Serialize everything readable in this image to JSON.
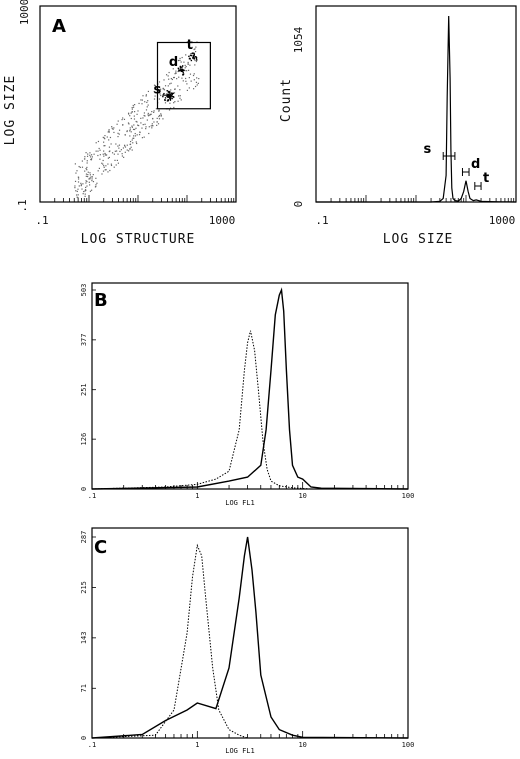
{
  "chart_data": [
    {
      "id": "A-scatter",
      "type": "scatter",
      "panel_label": "A",
      "xlabel": "LOG STRUCTURE",
      "ylabel": "LOG SIZE",
      "x_scale": "log",
      "y_scale": "log",
      "xlim": [
        0.1,
        1000
      ],
      "ylim": [
        0.1,
        1000
      ],
      "x_ticks": [
        ".1",
        "1000"
      ],
      "y_ticks": [
        ".1",
        "1000"
      ],
      "gate_box": {
        "x": [
          25,
          300
        ],
        "y": [
          8,
          180
        ]
      },
      "populations": [
        {
          "label": "s",
          "x": 40,
          "y": 15
        },
        {
          "label": "d",
          "x": 75,
          "y": 50
        },
        {
          "label": "t",
          "x": 130,
          "y": 90
        }
      ]
    },
    {
      "id": "A-histogram",
      "type": "line",
      "ylabel": "Count",
      "xlabel": "LOG  SIZE",
      "x_scale": "log",
      "xlim": [
        0.1,
        1000
      ],
      "ylim": [
        0,
        1054
      ],
      "x_ticks": [
        ".1",
        "1000"
      ],
      "y_ticks": [
        "0",
        "1054"
      ],
      "x": [
        20,
        30,
        35,
        40,
        42,
        45,
        48,
        50,
        52,
        55,
        60,
        70,
        80,
        90,
        100,
        110,
        120,
        140,
        160,
        200,
        300,
        500,
        1000
      ],
      "values": [
        0,
        4,
        20,
        150,
        600,
        1054,
        700,
        300,
        80,
        20,
        8,
        5,
        20,
        60,
        120,
        60,
        20,
        8,
        12,
        4,
        2,
        1,
        0
      ],
      "gates": [
        {
          "label": "s",
          "x": [
            35,
            60
          ]
        },
        {
          "label": "d",
          "x": [
            85,
            115
          ]
        },
        {
          "label": "t",
          "x": [
            150,
            200
          ]
        }
      ]
    },
    {
      "id": "B",
      "type": "line",
      "panel_label": "B",
      "xlabel": "LOG FL1",
      "x_scale": "log",
      "xlim": [
        0.1,
        100
      ],
      "ylim": [
        0,
        503
      ],
      "x_ticks": [
        ".1",
        "1",
        "10",
        "100"
      ],
      "y_ticks": [
        "0",
        "126",
        "251",
        "377",
        "503"
      ],
      "series": [
        {
          "style": "dotted",
          "x": [
            0.1,
            0.5,
            1.0,
            1.5,
            2.0,
            2.5,
            2.8,
            3.0,
            3.2,
            3.5,
            3.8,
            4.2,
            4.6,
            5.0,
            6.0,
            8.0,
            12,
            100
          ],
          "values": [
            0,
            5,
            12,
            25,
            45,
            150,
            300,
            370,
            400,
            350,
            250,
            120,
            50,
            20,
            8,
            3,
            0,
            0
          ]
        },
        {
          "style": "solid",
          "x": [
            0.1,
            1.0,
            2.0,
            3.0,
            4.0,
            4.5,
            5.0,
            5.5,
            6.0,
            6.3,
            6.6,
            7.0,
            7.5,
            8.0,
            9.0,
            10.0,
            12,
            15,
            100
          ],
          "values": [
            0,
            5,
            20,
            30,
            60,
            150,
            300,
            440,
            490,
            503,
            450,
            300,
            150,
            60,
            30,
            25,
            5,
            2,
            0
          ]
        }
      ]
    },
    {
      "id": "C",
      "type": "line",
      "panel_label": "C",
      "xlabel": "LOG FL1",
      "x_scale": "log",
      "xlim": [
        0.1,
        100
      ],
      "ylim": [
        0,
        287
      ],
      "x_ticks": [
        ".1",
        "1",
        "10",
        "100"
      ],
      "y_ticks": [
        "0",
        "71",
        "143",
        "215",
        "287"
      ],
      "series": [
        {
          "style": "dotted",
          "x": [
            0.1,
            0.4,
            0.6,
            0.8,
            0.9,
            1.0,
            1.1,
            1.2,
            1.4,
            1.6,
            2.0,
            2.5,
            3.0,
            100
          ],
          "values": [
            0,
            4,
            40,
            150,
            230,
            275,
            260,
            200,
            100,
            40,
            12,
            4,
            0,
            0
          ]
        },
        {
          "style": "solid",
          "x": [
            0.1,
            0.3,
            0.5,
            0.8,
            1.0,
            1.5,
            2.0,
            2.5,
            2.8,
            3.0,
            3.3,
            3.6,
            4.0,
            5.0,
            6.0,
            8.0,
            10,
            100
          ],
          "values": [
            0,
            5,
            25,
            40,
            50,
            42,
            100,
            200,
            260,
            287,
            240,
            180,
            90,
            30,
            12,
            4,
            1,
            0
          ]
        }
      ]
    }
  ]
}
